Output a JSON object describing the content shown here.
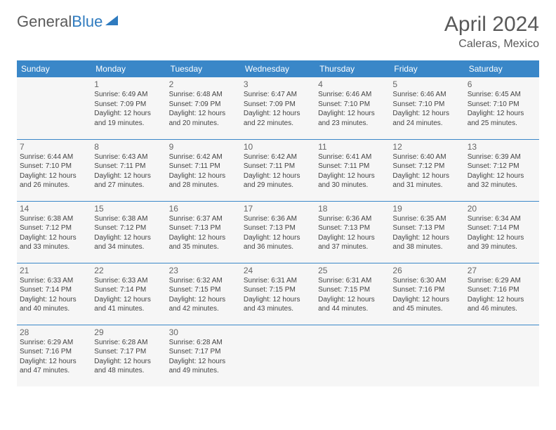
{
  "logo": {
    "word1": "General",
    "word2": "Blue"
  },
  "title": "April 2024",
  "location": "Caleras, Mexico",
  "header_bg": "#3a87c8",
  "border_color": "#3a87c8",
  "day_names": [
    "Sunday",
    "Monday",
    "Tuesday",
    "Wednesday",
    "Thursday",
    "Friday",
    "Saturday"
  ],
  "weeks": [
    [
      null,
      {
        "n": "1",
        "sr": "6:49 AM",
        "ss": "7:09 PM",
        "dl": "12 hours and 19 minutes."
      },
      {
        "n": "2",
        "sr": "6:48 AM",
        "ss": "7:09 PM",
        "dl": "12 hours and 20 minutes."
      },
      {
        "n": "3",
        "sr": "6:47 AM",
        "ss": "7:09 PM",
        "dl": "12 hours and 22 minutes."
      },
      {
        "n": "4",
        "sr": "6:46 AM",
        "ss": "7:10 PM",
        "dl": "12 hours and 23 minutes."
      },
      {
        "n": "5",
        "sr": "6:46 AM",
        "ss": "7:10 PM",
        "dl": "12 hours and 24 minutes."
      },
      {
        "n": "6",
        "sr": "6:45 AM",
        "ss": "7:10 PM",
        "dl": "12 hours and 25 minutes."
      }
    ],
    [
      {
        "n": "7",
        "sr": "6:44 AM",
        "ss": "7:10 PM",
        "dl": "12 hours and 26 minutes."
      },
      {
        "n": "8",
        "sr": "6:43 AM",
        "ss": "7:11 PM",
        "dl": "12 hours and 27 minutes."
      },
      {
        "n": "9",
        "sr": "6:42 AM",
        "ss": "7:11 PM",
        "dl": "12 hours and 28 minutes."
      },
      {
        "n": "10",
        "sr": "6:42 AM",
        "ss": "7:11 PM",
        "dl": "12 hours and 29 minutes."
      },
      {
        "n": "11",
        "sr": "6:41 AM",
        "ss": "7:11 PM",
        "dl": "12 hours and 30 minutes."
      },
      {
        "n": "12",
        "sr": "6:40 AM",
        "ss": "7:12 PM",
        "dl": "12 hours and 31 minutes."
      },
      {
        "n": "13",
        "sr": "6:39 AM",
        "ss": "7:12 PM",
        "dl": "12 hours and 32 minutes."
      }
    ],
    [
      {
        "n": "14",
        "sr": "6:38 AM",
        "ss": "7:12 PM",
        "dl": "12 hours and 33 minutes."
      },
      {
        "n": "15",
        "sr": "6:38 AM",
        "ss": "7:12 PM",
        "dl": "12 hours and 34 minutes."
      },
      {
        "n": "16",
        "sr": "6:37 AM",
        "ss": "7:13 PM",
        "dl": "12 hours and 35 minutes."
      },
      {
        "n": "17",
        "sr": "6:36 AM",
        "ss": "7:13 PM",
        "dl": "12 hours and 36 minutes."
      },
      {
        "n": "18",
        "sr": "6:36 AM",
        "ss": "7:13 PM",
        "dl": "12 hours and 37 minutes."
      },
      {
        "n": "19",
        "sr": "6:35 AM",
        "ss": "7:13 PM",
        "dl": "12 hours and 38 minutes."
      },
      {
        "n": "20",
        "sr": "6:34 AM",
        "ss": "7:14 PM",
        "dl": "12 hours and 39 minutes."
      }
    ],
    [
      {
        "n": "21",
        "sr": "6:33 AM",
        "ss": "7:14 PM",
        "dl": "12 hours and 40 minutes."
      },
      {
        "n": "22",
        "sr": "6:33 AM",
        "ss": "7:14 PM",
        "dl": "12 hours and 41 minutes."
      },
      {
        "n": "23",
        "sr": "6:32 AM",
        "ss": "7:15 PM",
        "dl": "12 hours and 42 minutes."
      },
      {
        "n": "24",
        "sr": "6:31 AM",
        "ss": "7:15 PM",
        "dl": "12 hours and 43 minutes."
      },
      {
        "n": "25",
        "sr": "6:31 AM",
        "ss": "7:15 PM",
        "dl": "12 hours and 44 minutes."
      },
      {
        "n": "26",
        "sr": "6:30 AM",
        "ss": "7:16 PM",
        "dl": "12 hours and 45 minutes."
      },
      {
        "n": "27",
        "sr": "6:29 AM",
        "ss": "7:16 PM",
        "dl": "12 hours and 46 minutes."
      }
    ],
    [
      {
        "n": "28",
        "sr": "6:29 AM",
        "ss": "7:16 PM",
        "dl": "12 hours and 47 minutes."
      },
      {
        "n": "29",
        "sr": "6:28 AM",
        "ss": "7:17 PM",
        "dl": "12 hours and 48 minutes."
      },
      {
        "n": "30",
        "sr": "6:28 AM",
        "ss": "7:17 PM",
        "dl": "12 hours and 49 minutes."
      },
      null,
      null,
      null,
      null
    ]
  ],
  "labels": {
    "sunrise": "Sunrise:",
    "sunset": "Sunset:",
    "daylight": "Daylight:"
  }
}
